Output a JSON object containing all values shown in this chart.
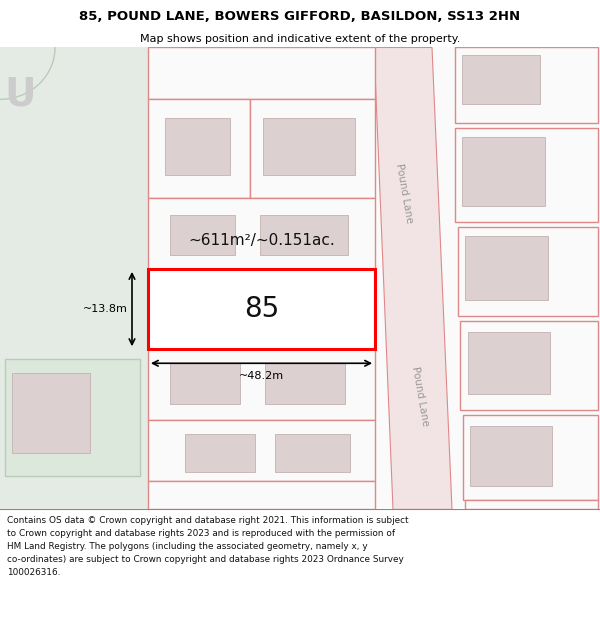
{
  "title": "85, POUND LANE, BOWERS GIFFORD, BASILDON, SS13 2HN",
  "subtitle": "Map shows position and indicative extent of the property.",
  "footer_line1": "Contains OS data © Crown copyright and database right 2021. This information is subject",
  "footer_line2": "to Crown copyright and database rights 2023 and is reproduced with the permission of",
  "footer_line3": "HM Land Registry. The polygons (including the associated geometry, namely x, y",
  "footer_line4": "co-ordinates) are subject to Crown copyright and database rights 2023 Ordnance Survey",
  "footer_line5": "100026316.",
  "map_bg": "#f7f7f2",
  "green_bg": "#e4ebe4",
  "plot_edge": "#e08888",
  "highlight_color": "#ff0000",
  "building_color": "#ddd0d0",
  "road_label_color": "#999999",
  "dim_color": "#000000",
  "plot_number": "85",
  "area_label": "~611m²/~0.151ac.",
  "width_label": "~48.2m",
  "height_label": "~13.8m"
}
